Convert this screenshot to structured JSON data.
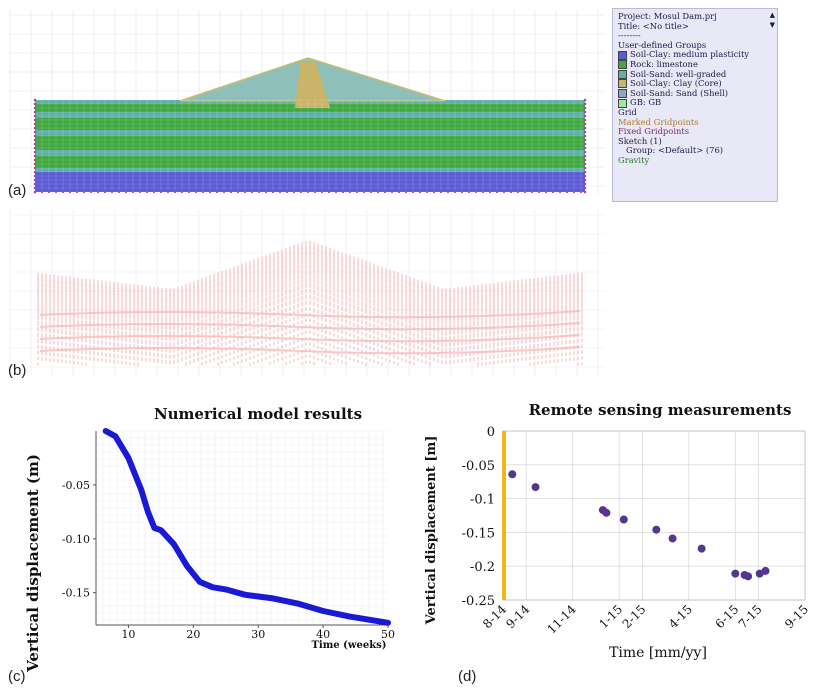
{
  "panel_labels": {
    "a": "(a)",
    "b": "(b)",
    "c": "(c)",
    "d": "(d)"
  },
  "legend": {
    "project": "Project: Mosul Dam.prj",
    "title": "Title: <No title>",
    "separator": "--------",
    "groups_header": "User-defined Groups",
    "groups": [
      {
        "label": "Soil-Clay: medium plasticity",
        "color": "#5b5bd6"
      },
      {
        "label": "Rock: limestone",
        "color": "#3fa83f"
      },
      {
        "label": "Soil-Sand: well-graded",
        "color": "#5fb0a8"
      },
      {
        "label": "Soil-Clay: Clay (Core)",
        "color": "#c9b46a"
      },
      {
        "label": "Soil-Sand: Sand (Shell)",
        "color": "#86a9c9"
      },
      {
        "label": "GB: GB",
        "color": "#9fe89f"
      }
    ],
    "extra": [
      {
        "label": "Grid",
        "color": "#1a1a4a"
      },
      {
        "label": "Marked Gridpoints",
        "color": "#b07a2a"
      },
      {
        "label": "Fixed Gridpoints",
        "color": "#7a2a7a"
      },
      {
        "label": "Sketch (1)",
        "color": "#1a1a4a"
      },
      {
        "label": "Group: <Default> (76)",
        "color": "#1a1a4a",
        "indent": true
      },
      {
        "label": "Gravity",
        "color": "#2a7a2a"
      }
    ]
  },
  "chart_data": [
    {
      "type": "line",
      "title": "Numerical model results",
      "xlabel": "Time (weeks)",
      "ylabel": "Vertical displacement (m)",
      "xlim": [
        5,
        50
      ],
      "ylim": [
        -0.18,
        0.0
      ],
      "xticks": [
        10,
        20,
        30,
        40,
        50
      ],
      "xtick_labels": [
        "10",
        "20",
        "30",
        "40",
        "50"
      ],
      "yticks": [
        -0.05,
        -0.1,
        -0.15
      ],
      "ytick_labels": [
        "-0.05",
        "-0.10",
        "-0.15"
      ],
      "color": "#1a1ad6",
      "x": [
        6.5,
        8,
        10,
        12,
        13,
        14,
        15,
        17,
        19,
        21,
        23,
        25,
        28,
        32,
        36,
        40,
        44,
        48,
        50
      ],
      "y": [
        0.0,
        -0.005,
        -0.025,
        -0.055,
        -0.075,
        -0.09,
        -0.092,
        -0.105,
        -0.125,
        -0.14,
        -0.145,
        -0.147,
        -0.152,
        -0.155,
        -0.16,
        -0.167,
        -0.172,
        -0.176,
        -0.178
      ]
    },
    {
      "type": "scatter",
      "title": "Remote sensing measurements",
      "xlabel": "Time [mm/yy]",
      "ylabel": "Vertical displacement [m]",
      "ylim": [
        -0.25,
        0.0
      ],
      "xtick_labels": [
        "8-14",
        "9-14",
        "11-14",
        "1-15",
        "2-15",
        "4-15",
        "6-15",
        "7-15",
        "9-15"
      ],
      "ytick_labels": [
        "0",
        "-0.05",
        "-0.1",
        "-0.15",
        "-0.2",
        "-0.25"
      ],
      "yticks": [
        0,
        -0.05,
        -0.1,
        -0.15,
        -0.2,
        -0.25
      ],
      "marker_color": "#55368e",
      "baseline_color": "#f2b418",
      "points": [
        {
          "x": "8-14",
          "y": -0.064
        },
        {
          "x": "9-14",
          "y": -0.083
        },
        {
          "x": "12-14",
          "y": -0.117
        },
        {
          "x": "12-14",
          "y": -0.121
        },
        {
          "x": "1-15",
          "y": -0.131
        },
        {
          "x": "2-15",
          "y": -0.146
        },
        {
          "x": "3-15",
          "y": -0.159
        },
        {
          "x": "4-15",
          "y": -0.174
        },
        {
          "x": "6-15",
          "y": -0.211
        },
        {
          "x": "6-15",
          "y": -0.213
        },
        {
          "x": "6-15",
          "y": -0.215
        },
        {
          "x": "7-15",
          "y": -0.211
        },
        {
          "x": "7-15",
          "y": -0.207
        }
      ]
    }
  ]
}
